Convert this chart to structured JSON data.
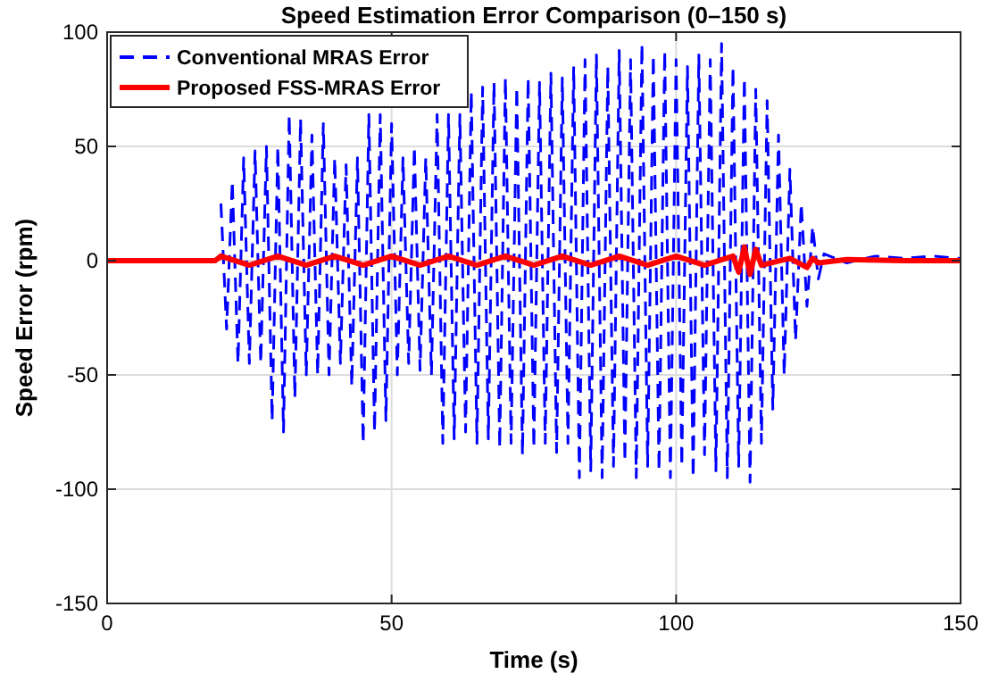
{
  "chart_data": {
    "type": "line",
    "title": "Speed Estimation Error Comparison (0–150 s)",
    "xlabel": "Time (s)",
    "ylabel": "Speed Error (rpm)",
    "xlim": [
      0,
      150
    ],
    "xticks": [
      0,
      50,
      100,
      150
    ],
    "ylim": [
      -150,
      100
    ],
    "yticks": [
      -150,
      -100,
      -50,
      0,
      50,
      100
    ],
    "grid": true,
    "legend": "top left",
    "series": [
      {
        "name": "Conventional MRAS Error",
        "color": "#0000ff",
        "line_style": "dashed",
        "x": [
          20,
          21,
          22,
          23,
          24,
          25,
          26,
          27,
          28,
          29,
          30,
          31,
          32,
          33,
          34,
          35,
          36,
          37,
          38,
          39,
          40,
          41,
          42,
          43,
          44,
          45,
          46,
          47,
          48,
          49,
          50,
          51,
          52,
          53,
          54,
          55,
          56,
          57,
          58,
          59,
          60,
          61,
          62,
          63,
          64,
          65,
          66,
          67,
          68,
          69,
          70,
          71,
          72,
          73,
          74,
          75,
          76,
          77,
          78,
          79,
          80,
          81,
          82,
          83,
          84,
          85,
          86,
          87,
          88,
          89,
          90,
          91,
          92,
          93,
          94,
          95,
          96,
          97,
          98,
          99,
          100,
          101,
          102,
          103,
          104,
          105,
          106,
          107,
          108,
          109,
          110,
          111,
          112,
          113,
          114,
          115,
          116,
          117,
          118,
          119,
          120,
          121,
          122,
          123,
          124,
          125,
          126,
          130,
          135,
          140,
          145,
          150
        ],
        "values": [
          25,
          -30,
          35,
          -45,
          45,
          -45,
          48,
          -45,
          50,
          -70,
          50,
          -75,
          64,
          -60,
          62,
          -50,
          55,
          -50,
          60,
          -50,
          45,
          -45,
          42,
          -55,
          45,
          -80,
          64,
          -75,
          64,
          -70,
          60,
          -50,
          45,
          -45,
          50,
          -48,
          45,
          -50,
          64,
          -80,
          64,
          -78,
          64,
          -75,
          74,
          -80,
          76,
          -78,
          78,
          -82,
          80,
          -80,
          76,
          -85,
          80,
          -82,
          78,
          -80,
          82,
          -84,
          80,
          -80,
          85,
          -95,
          88,
          -92,
          90,
          -95,
          85,
          -90,
          92,
          -88,
          88,
          -95,
          95,
          -90,
          90,
          -92,
          92,
          -95,
          88,
          -90,
          85,
          -95,
          90,
          -85,
          88,
          -92,
          95,
          -95,
          85,
          -90,
          80,
          -97,
          75,
          -80,
          70,
          -65,
          55,
          -50,
          40,
          -35,
          25,
          -20,
          15,
          -8,
          3,
          -1,
          2,
          1,
          2,
          1
        ]
      },
      {
        "name": "Proposed FSS-MRAS Error",
        "color": "#ff0000",
        "line_style": "solid",
        "x": [
          0,
          19,
          20,
          25,
          30,
          35,
          40,
          45,
          50,
          55,
          60,
          65,
          70,
          75,
          80,
          85,
          90,
          95,
          100,
          105,
          110,
          111,
          112,
          113,
          114,
          115,
          120,
          123,
          124,
          125,
          130,
          140,
          150
        ],
        "values": [
          0,
          0,
          2,
          -2,
          2,
          -2,
          2,
          -2,
          2,
          -2,
          2,
          -2,
          2,
          -2,
          2,
          -2,
          2,
          -2,
          2,
          -2,
          2,
          -5,
          6,
          -6,
          5,
          -2,
          1,
          -3,
          1,
          -1,
          0.5,
          0,
          0
        ]
      }
    ]
  }
}
